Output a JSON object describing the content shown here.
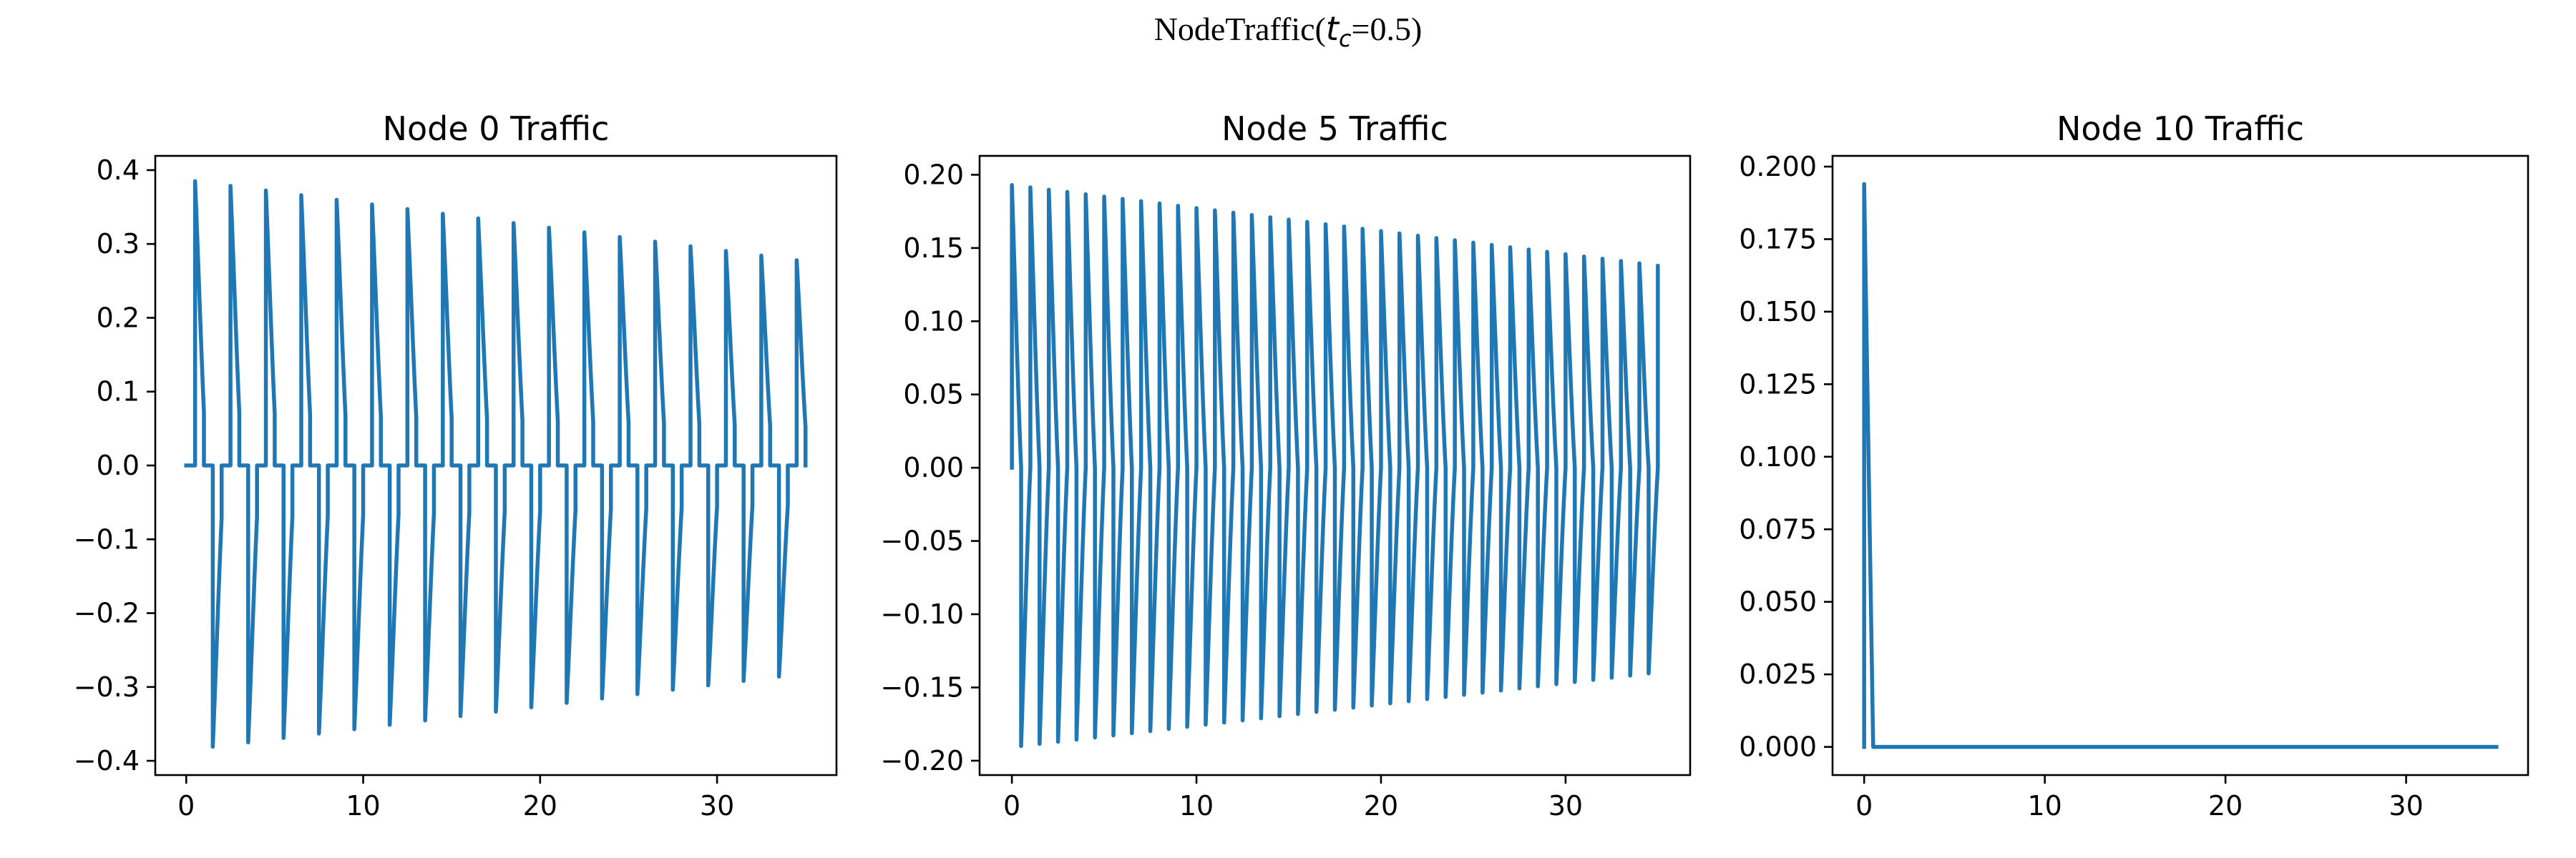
{
  "figure": {
    "suptitle_prefix": "NodeTraffic(",
    "suptitle_var": "t",
    "suptitle_sub": "c",
    "suptitle_suffix": "=0.5)"
  },
  "chart_data": [
    {
      "type": "line",
      "title": "Node 0 Traffic",
      "xlabel": "",
      "ylabel": "",
      "xlim": [
        -1.75,
        36.75
      ],
      "ylim": [
        -0.4193,
        0.4193
      ],
      "xticks": [
        0,
        10,
        20,
        30
      ],
      "xtick_labels": [
        "0",
        "10",
        "20",
        "30"
      ],
      "yticks": [
        -0.4,
        -0.3,
        -0.2,
        -0.1,
        0.0,
        0.1,
        0.2,
        0.3,
        0.4
      ],
      "ytick_labels": [
        "−0.4",
        "−0.3",
        "−0.2",
        "−0.1",
        "0.0",
        "0.1",
        "0.2",
        "0.3",
        "0.4"
      ],
      "grid": false,
      "color": "#1f77b4",
      "pulse_model": {
        "period": 2.0,
        "pos_start": 0.5,
        "neg_start": 1.5,
        "pulse_width": 0.5,
        "pos_peak_first": 0.385,
        "pos_peak_last": 0.278,
        "neg_peak_first": -0.381,
        "neg_peak_last": -0.28,
        "decay_end_fraction": 0.25,
        "x_end": 35
      }
    },
    {
      "type": "line",
      "title": "Node 5 Traffic",
      "xlabel": "",
      "ylabel": "",
      "xlim": [
        -1.75,
        36.75
      ],
      "ylim": [
        -0.2098,
        0.2129
      ],
      "xticks": [
        0,
        10,
        20,
        30
      ],
      "xtick_labels": [
        "0",
        "10",
        "20",
        "30"
      ],
      "yticks": [
        -0.2,
        -0.15,
        -0.1,
        -0.05,
        0.0,
        0.05,
        0.1,
        0.15,
        0.2
      ],
      "ytick_labels": [
        "−0.20",
        "−0.15",
        "−0.10",
        "−0.05",
        "0.00",
        "0.05",
        "0.10",
        "0.15",
        "0.20"
      ],
      "grid": false,
      "color": "#1f77b4",
      "pulse_model": {
        "period": 1.0,
        "pos_start": 0.0,
        "neg_start": 0.5,
        "pulse_width": 0.5,
        "pos_peak_first": 0.193,
        "pos_peak_last": 0.138,
        "neg_peak_first": -0.19,
        "neg_peak_last": -0.139,
        "decay_end_fraction": 0.0,
        "x_end": 35,
        "final_value": 0.11
      }
    },
    {
      "type": "line",
      "title": "Node 10 Traffic",
      "xlabel": "",
      "ylabel": "",
      "xlim": [
        -1.75,
        36.75
      ],
      "ylim": [
        -0.0097,
        0.2037
      ],
      "xticks": [
        0,
        10,
        20,
        30
      ],
      "xtick_labels": [
        "0",
        "10",
        "20",
        "30"
      ],
      "yticks": [
        0.0,
        0.025,
        0.05,
        0.075,
        0.1,
        0.125,
        0.15,
        0.175,
        0.2
      ],
      "ytick_labels": [
        "0.000",
        "0.025",
        "0.050",
        "0.075",
        "0.100",
        "0.125",
        "0.150",
        "0.175",
        "0.200"
      ],
      "grid": false,
      "color": "#1f77b4",
      "points": {
        "x": [
          0,
          0,
          0.5,
          0.5,
          35
        ],
        "y": [
          0,
          0.194,
          0,
          0,
          0
        ]
      }
    }
  ]
}
